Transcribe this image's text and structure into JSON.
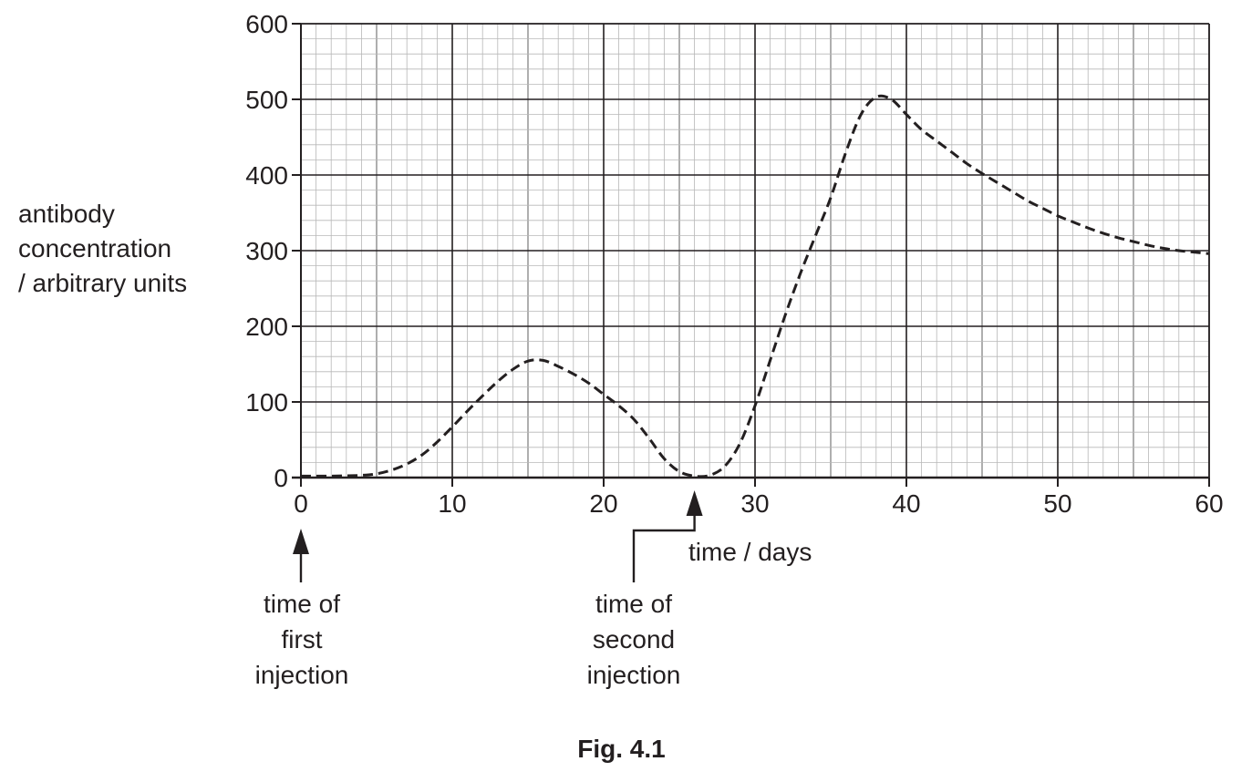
{
  "chart_data": {
    "type": "line",
    "xlabel": "time / days",
    "ylabel": [
      "antibody",
      "concentration",
      "/ arbitrary units"
    ],
    "xlim": [
      0,
      60
    ],
    "ylim": [
      0,
      600
    ],
    "x_ticks": [
      0,
      10,
      20,
      30,
      40,
      50,
      60
    ],
    "y_ticks": [
      0,
      100,
      200,
      300,
      400,
      500,
      600
    ],
    "grid": true,
    "line_style": "dashed",
    "series": [
      {
        "x": [
          0,
          2,
          4,
          5,
          6,
          7,
          8,
          9,
          10,
          11,
          12,
          13,
          14,
          15,
          16,
          17,
          18,
          19,
          20,
          21,
          22,
          23,
          24,
          25,
          26,
          27,
          28,
          29,
          30,
          31,
          32,
          33,
          34,
          35,
          36,
          37,
          38,
          39,
          40,
          41,
          42,
          43,
          44,
          45,
          46,
          47,
          48,
          49,
          50,
          51,
          52,
          53,
          54,
          55,
          56,
          57,
          58,
          59,
          60
        ],
        "y": [
          2,
          2,
          3,
          5,
          10,
          18,
          30,
          47,
          67,
          88,
          108,
          127,
          143,
          154,
          155,
          147,
          137,
          125,
          110,
          95,
          77,
          52,
          25,
          8,
          2,
          3,
          15,
          45,
          95,
          155,
          215,
          270,
          320,
          370,
          430,
          480,
          503,
          500,
          480,
          460,
          445,
          430,
          415,
          402,
          390,
          378,
          366,
          356,
          346,
          338,
          330,
          323,
          317,
          312,
          307,
          303,
          300,
          298,
          296
        ]
      }
    ],
    "annotations": [
      {
        "x": 0,
        "lines": [
          "time of",
          "first",
          "injection"
        ]
      },
      {
        "x": 26,
        "lines": [
          "time of",
          "second",
          "injection"
        ]
      }
    ],
    "caption": "Fig. 4.1"
  }
}
